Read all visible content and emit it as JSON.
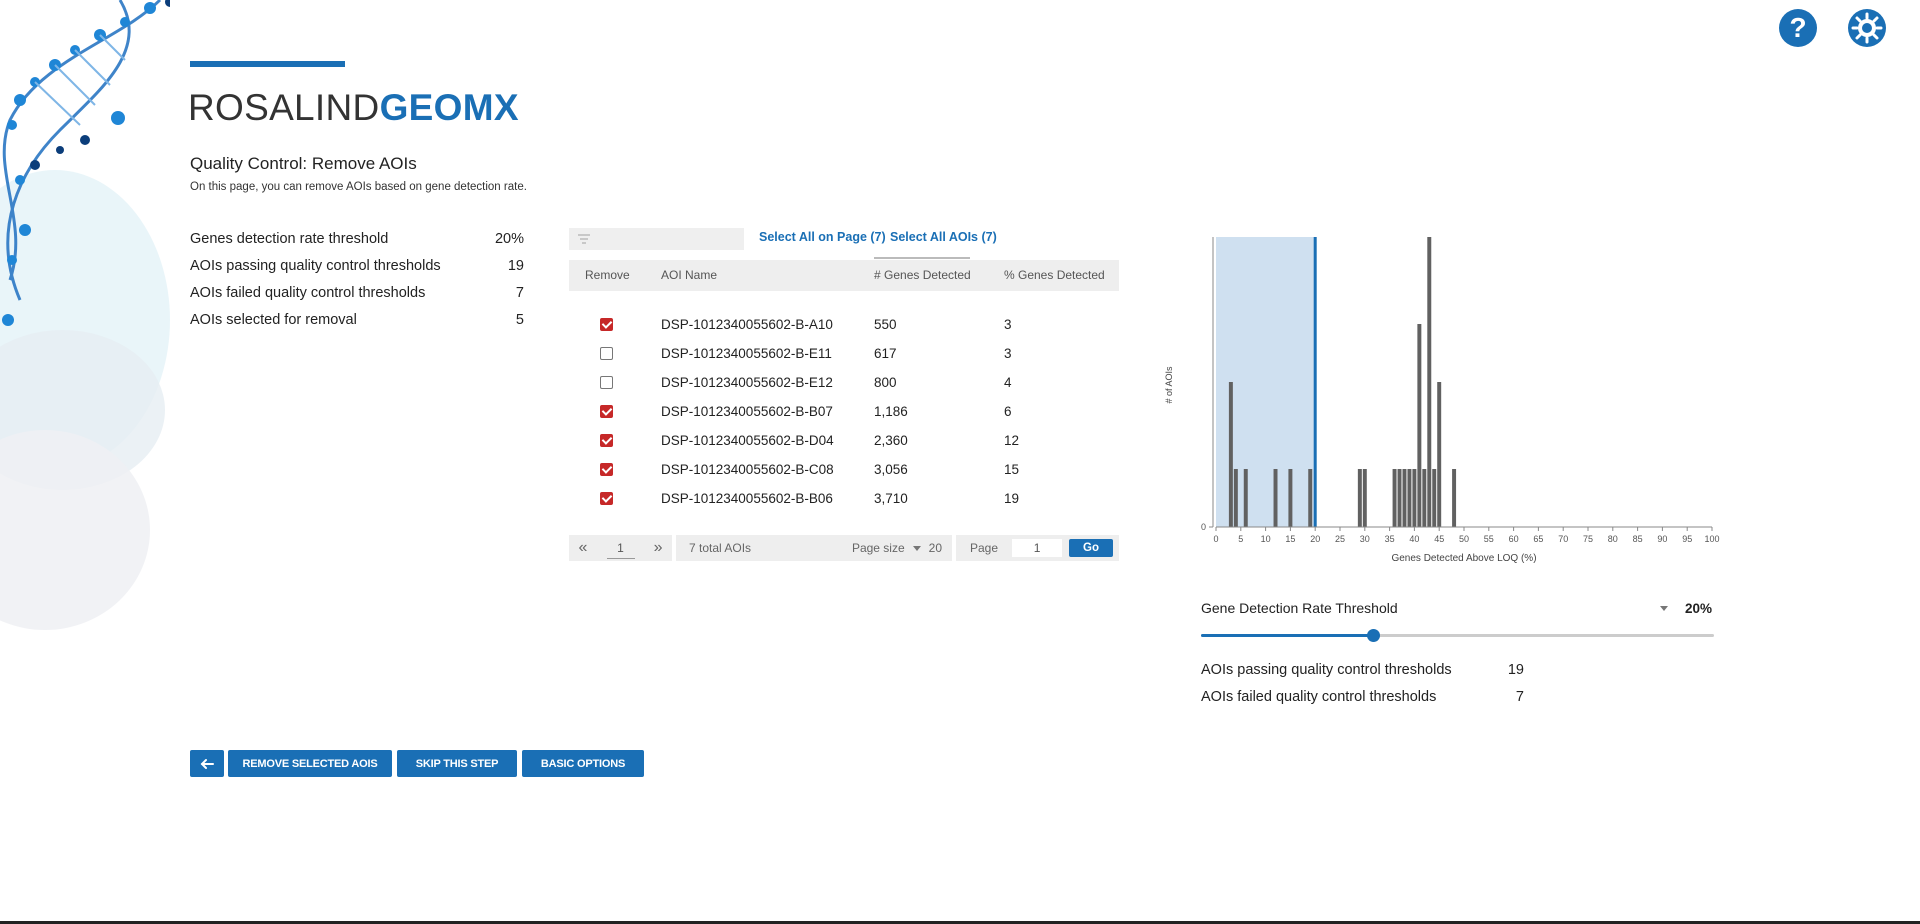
{
  "header": {
    "logo_part1": "ROSALIND",
    "logo_part2": "GEOMX",
    "title": "Quality Control: Remove AOIs",
    "description": "On this page, you can remove AOIs based on gene detection rate."
  },
  "stats": [
    {
      "label": "Genes detection rate threshold",
      "value": "20%"
    },
    {
      "label": "AOIs passing quality control thresholds",
      "value": "19"
    },
    {
      "label": "AOIs failed quality control thresholds",
      "value": "7"
    },
    {
      "label": "AOIs selected for removal",
      "value": "5"
    }
  ],
  "table": {
    "filter_placeholder": "",
    "select_page_label": "Select All on Page (7)",
    "select_all_label": "Select All AOIs (7)",
    "columns": {
      "remove": "Remove",
      "name": "AOI Name",
      "genes": "# Genes Detected",
      "pct": "% Genes Detected"
    },
    "rows": [
      {
        "checked": true,
        "name": "DSP-1012340055602-B-A10",
        "genes": "550",
        "pct": "3"
      },
      {
        "checked": false,
        "name": "DSP-1012340055602-B-E11",
        "genes": "617",
        "pct": "3"
      },
      {
        "checked": false,
        "name": "DSP-1012340055602-B-E12",
        "genes": "800",
        "pct": "4"
      },
      {
        "checked": true,
        "name": "DSP-1012340055602-B-B07",
        "genes": "1,186",
        "pct": "6"
      },
      {
        "checked": true,
        "name": "DSP-1012340055602-B-D04",
        "genes": "2,360",
        "pct": "12"
      },
      {
        "checked": true,
        "name": "DSP-1012340055602-B-C08",
        "genes": "3,056",
        "pct": "15"
      },
      {
        "checked": true,
        "name": "DSP-1012340055602-B-B06",
        "genes": "3,710",
        "pct": "19"
      }
    ]
  },
  "pager": {
    "current_page": "1",
    "total_label": "7 total AOIs",
    "page_size_label": "Page size",
    "page_size_value": "20",
    "page_label": "Page",
    "page_input": "1",
    "go_label": "Go"
  },
  "chart_data": {
    "type": "bar",
    "xlabel": "Genes Detected Above LOQ (%)",
    "ylabel": "# of AOIs",
    "xlim": [
      0,
      100
    ],
    "ylim": [
      0,
      10
    ],
    "x_ticks": [
      0,
      5,
      10,
      15,
      20,
      25,
      30,
      35,
      40,
      45,
      50,
      55,
      60,
      65,
      70,
      75,
      80,
      85,
      90,
      95,
      100
    ],
    "y_ticks": [
      0
    ],
    "threshold": 20,
    "bins": [
      {
        "x": 3,
        "y": 5
      },
      {
        "x": 4,
        "y": 2
      },
      {
        "x": 6,
        "y": 2
      },
      {
        "x": 12,
        "y": 2
      },
      {
        "x": 15,
        "y": 2
      },
      {
        "x": 19,
        "y": 2
      },
      {
        "x": 29,
        "y": 2
      },
      {
        "x": 30,
        "y": 2
      },
      {
        "x": 36,
        "y": 2
      },
      {
        "x": 37,
        "y": 2
      },
      {
        "x": 38,
        "y": 2
      },
      {
        "x": 39,
        "y": 2
      },
      {
        "x": 40,
        "y": 2
      },
      {
        "x": 41,
        "y": 7
      },
      {
        "x": 42,
        "y": 2
      },
      {
        "x": 43,
        "y": 10
      },
      {
        "x": 44,
        "y": 2
      },
      {
        "x": 45,
        "y": 5
      },
      {
        "x": 48,
        "y": 2
      }
    ]
  },
  "threshold_control": {
    "label": "Gene Detection Rate Threshold",
    "value_label": "20%",
    "value": 20,
    "max": 50
  },
  "stats2": [
    {
      "label": "AOIs passing quality control thresholds",
      "value": "19"
    },
    {
      "label": "AOIs failed quality control thresholds",
      "value": "7"
    }
  ],
  "buttons": {
    "remove": "REMOVE SELECTED AOIS",
    "skip": "SKIP THIS STEP",
    "basic": "BASIC OPTIONS"
  },
  "colors": {
    "accent": "#1a6fb5",
    "checkbox": "#c62828",
    "bar": "#616161",
    "threshold_fill": "#cfe0f0"
  }
}
